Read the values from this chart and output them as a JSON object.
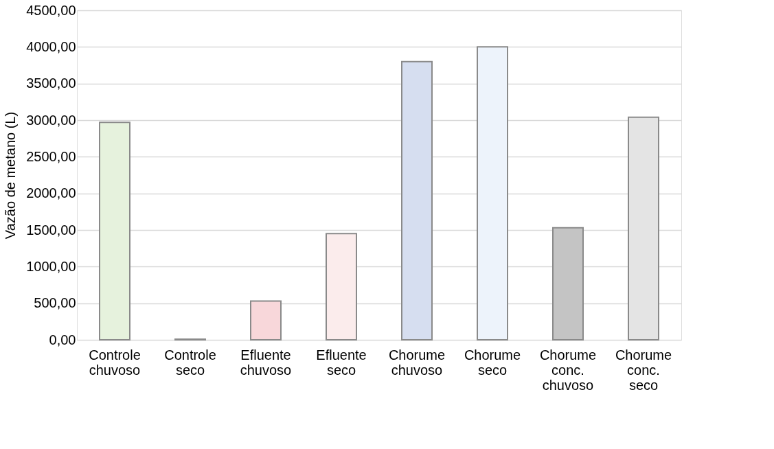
{
  "chart_data": {
    "type": "bar",
    "ylabel": "Vazão de metano (L)",
    "categories": [
      "Controle chuvoso",
      "Controle seco",
      "Efluente chuvoso",
      "Efluente seco",
      "Chorume chuvoso",
      "Chorume seco",
      "Chorume conc. chuvoso",
      "Chorume conc. seco"
    ],
    "values": [
      2970,
      10,
      530,
      1450,
      3800,
      4000,
      1530,
      3040
    ],
    "colors": [
      "#e6f2dd",
      "#f2f2f2",
      "#f8d7da",
      "#fbecec",
      "#d6def0",
      "#edf3fb",
      "#c4c4c4",
      "#e4e4e4"
    ],
    "ylim": [
      0,
      4500
    ],
    "yticks": [
      {
        "value": 0,
        "label": "0,00"
      },
      {
        "value": 500,
        "label": "500,00"
      },
      {
        "value": 1000,
        "label": "1000,00"
      },
      {
        "value": 1500,
        "label": "1500,00"
      },
      {
        "value": 2000,
        "label": "2000,00"
      },
      {
        "value": 2500,
        "label": "2500,00"
      },
      {
        "value": 3000,
        "label": "3000,00"
      },
      {
        "value": 3500,
        "label": "3500,00"
      },
      {
        "value": 4000,
        "label": "4000,00"
      },
      {
        "value": 4500,
        "label": "4500,00"
      }
    ],
    "grid": "y"
  }
}
